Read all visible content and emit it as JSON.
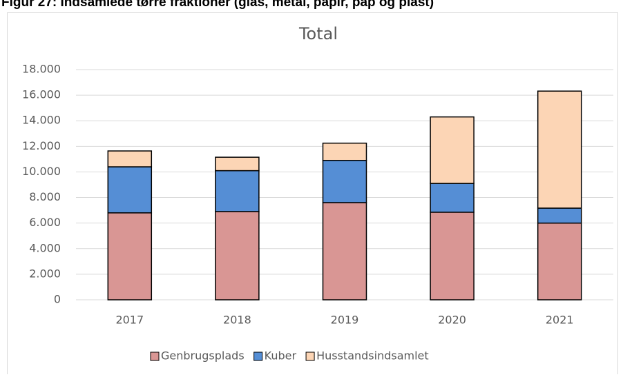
{
  "heading": "Figur 27: Indsamlede tørre fraktioner (glas, metal, papir, pap og plast)",
  "chart_data": {
    "type": "stacked-bar",
    "title": "Total",
    "categories": [
      "2017",
      "2018",
      "2019",
      "2020",
      "2021"
    ],
    "series": [
      {
        "name": "Genbrugsplads",
        "color": "#d99694",
        "values": [
          6800,
          6900,
          7600,
          6850,
          6000
        ]
      },
      {
        "name": "Kuber",
        "color": "#558ed5",
        "values": [
          3600,
          3200,
          3300,
          2250,
          1170
        ]
      },
      {
        "name": "Husstandsindsamlet",
        "color": "#fcd5b5",
        "values": [
          1240,
          1050,
          1350,
          5200,
          9150
        ]
      }
    ],
    "ylim": [
      0,
      18000
    ],
    "yticks": [
      0,
      {
        "value": 2000,
        "label": "2.000"
      },
      {
        "value": 4000,
        "label": "4.000"
      },
      {
        "value": 6000,
        "label": "6.000"
      },
      {
        "value": 8000,
        "label": "8.000"
      },
      {
        "value": 10000,
        "label": "10.000"
      },
      {
        "value": 12000,
        "label": "12.000"
      },
      {
        "value": 14000,
        "label": "14.000"
      },
      {
        "value": 16000,
        "label": "16.000"
      },
      {
        "value": 18000,
        "label": "18.000"
      }
    ],
    "grid": true,
    "legend": "bottom"
  }
}
